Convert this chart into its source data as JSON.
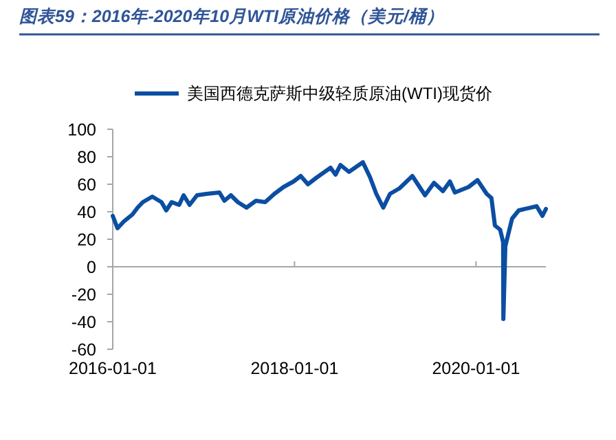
{
  "chart_data": {
    "type": "line",
    "title": "图表59：2016年-2020年10月WTI原油价格（美元/桶）",
    "legend": "top",
    "xlim": [
      "2016-01-01",
      "2020-10-08"
    ],
    "xticks": [
      "2016-01-01",
      "2018-01-01",
      "2020-01-01"
    ],
    "ylim": [
      -60,
      100
    ],
    "yticks": [
      -60,
      -40,
      -20,
      0,
      20,
      40,
      60,
      80,
      100
    ],
    "series": [
      {
        "name": "美国西德克萨斯中级轻质原油(WTI)现货价",
        "color": "#0b4ea2",
        "x": [
          "2016-01-01",
          "2016-01-20",
          "2016-02-15",
          "2016-03-20",
          "2016-04-10",
          "2016-05-01",
          "2016-06-08",
          "2016-07-15",
          "2016-08-03",
          "2016-08-25",
          "2016-09-24",
          "2016-10-12",
          "2016-11-05",
          "2016-12-05",
          "2017-01-12",
          "2017-03-05",
          "2017-03-25",
          "2017-04-20",
          "2017-05-18",
          "2017-06-22",
          "2017-07-30",
          "2017-09-05",
          "2017-10-12",
          "2017-11-18",
          "2017-12-28",
          "2018-01-26",
          "2018-02-24",
          "2018-04-01",
          "2018-05-26",
          "2018-06-15",
          "2018-07-05",
          "2018-08-08",
          "2018-10-03",
          "2018-11-01",
          "2018-11-26",
          "2018-12-24",
          "2019-01-20",
          "2019-02-27",
          "2019-04-20",
          "2019-06-10",
          "2019-07-16",
          "2019-08-21",
          "2019-09-18",
          "2019-10-08",
          "2019-12-02",
          "2020-01-07",
          "2020-02-13",
          "2020-03-03",
          "2020-03-17",
          "2020-04-07",
          "2020-04-19",
          "2020-04-20",
          "2020-04-28",
          "2020-05-25",
          "2020-06-21",
          "2020-09-01",
          "2020-09-24",
          "2020-10-08"
        ],
        "values": [
          37,
          28,
          33,
          38,
          43,
          47,
          51,
          47,
          41,
          47,
          45,
          52,
          45,
          52,
          53,
          54,
          48,
          52,
          47,
          43,
          48,
          47,
          53,
          58,
          62,
          66,
          60,
          65,
          72,
          67,
          74,
          69,
          76,
          65,
          53,
          43,
          53,
          57,
          66,
          52,
          61,
          55,
          62,
          54,
          58,
          63,
          53,
          50,
          30,
          27,
          18,
          -38,
          15,
          35,
          41,
          44,
          37,
          42
        ]
      }
    ]
  }
}
